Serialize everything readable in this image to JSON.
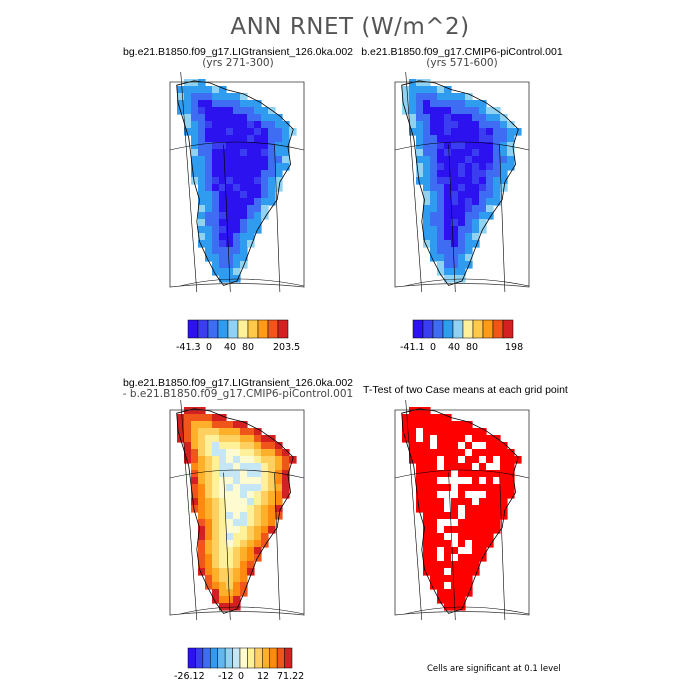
{
  "main_title": "ANN RNET (W/m^2)",
  "panels": [
    {
      "title": "bg.e21.B1850.f09_g17.LIGtransient_126.0ka.002",
      "subtitle": "(yrs 271-300)",
      "colorbar": {
        "min_label": "-41.3",
        "tick_labels": [
          "0",
          "40",
          "80"
        ],
        "max_label": "203.5"
      },
      "colors": [
        "#2b12ee",
        "#3b3ef0",
        "#3e6cf2",
        "#2f9cf0",
        "#8fd2f2",
        "#fff19a",
        "#ffc94a",
        "#ff9a1a",
        "#f0561a",
        "#d42020"
      ]
    },
    {
      "title": "b.e21.B1850.f09_g17.CMIP6-piControl.001",
      "subtitle": "(yrs 571-600)",
      "colorbar": {
        "min_label": "-41.1",
        "tick_labels": [
          "0",
          "40",
          "80"
        ],
        "max_label": "198"
      },
      "colors": [
        "#2b12ee",
        "#3b3ef0",
        "#3e6cf2",
        "#2f9cf0",
        "#8fd2f2",
        "#fff19a",
        "#ffc94a",
        "#ff9a1a",
        "#f0561a",
        "#d42020"
      ]
    },
    {
      "title": "bg.e21.B1850.f09_g17.LIGtransient_126.0ka.002",
      "subtitle": "- b.e21.B1850.f09_g17.CMIP6-piControl.001",
      "colorbar": {
        "min_label": "-26.12",
        "tick_labels": [
          "-12",
          "0",
          "12"
        ],
        "max_label": "71.22"
      },
      "colors": [
        "#2b12ee",
        "#3b3ef0",
        "#3e6cf2",
        "#2f9cf0",
        "#5fb8f4",
        "#8fd2f2",
        "#c4e6f5",
        "#fffbd0",
        "#fff19a",
        "#ffd060",
        "#ffb02a",
        "#ff8a10",
        "#f0561a",
        "#d42020"
      ]
    },
    {
      "title": "T-Test of two Case means at each grid point",
      "subtitle": "",
      "note": "Cells are significant at 0.1 level",
      "colors": [
        "#ff0000"
      ]
    }
  ],
  "chart_data": [
    {
      "type": "heatmap",
      "title": "bg.e21.B1850.f09_g17.LIGtransient_126.0ka.002",
      "subtitle": "(yrs 271-300)",
      "variable": "ANN RNET",
      "units": "W/m^2",
      "colorbar_range": [
        -41.3,
        203.5
      ],
      "colorbar_ticks": [
        0,
        40,
        80
      ],
      "pattern": "Interior strongly negative (deep blue); margins lighter blue"
    },
    {
      "type": "heatmap",
      "title": "b.e21.B1850.f09_g17.CMIP6-piControl.001",
      "subtitle": "(yrs 571-600)",
      "variable": "ANN RNET",
      "units": "W/m^2",
      "colorbar_range": [
        -41.1,
        198
      ],
      "colorbar_ticks": [
        0,
        40,
        80
      ],
      "pattern": "Interior strongly negative (deep blue); margins lighter blue"
    },
    {
      "type": "heatmap",
      "title": "bg.e21.B1850.f09_g17.LIGtransient_126.0ka.002",
      "subtitle": "- b.e21.B1850.f09_g17.CMIP6-piControl.001",
      "variable": "ANN RNET difference",
      "units": "W/m^2",
      "colorbar_range": [
        -26.12,
        71.22
      ],
      "colorbar_ticks": [
        -12,
        0,
        12
      ],
      "pattern": "Positive everywhere; strongest (red) along northern and western margins, near zero (light blue) in interior"
    },
    {
      "type": "heatmap",
      "title": "T-Test of two Case means at each grid point",
      "note": "Cells are significant at 0.1 level",
      "pattern": "Most cells significant (red), with scattered non-significant cells in interior"
    }
  ]
}
